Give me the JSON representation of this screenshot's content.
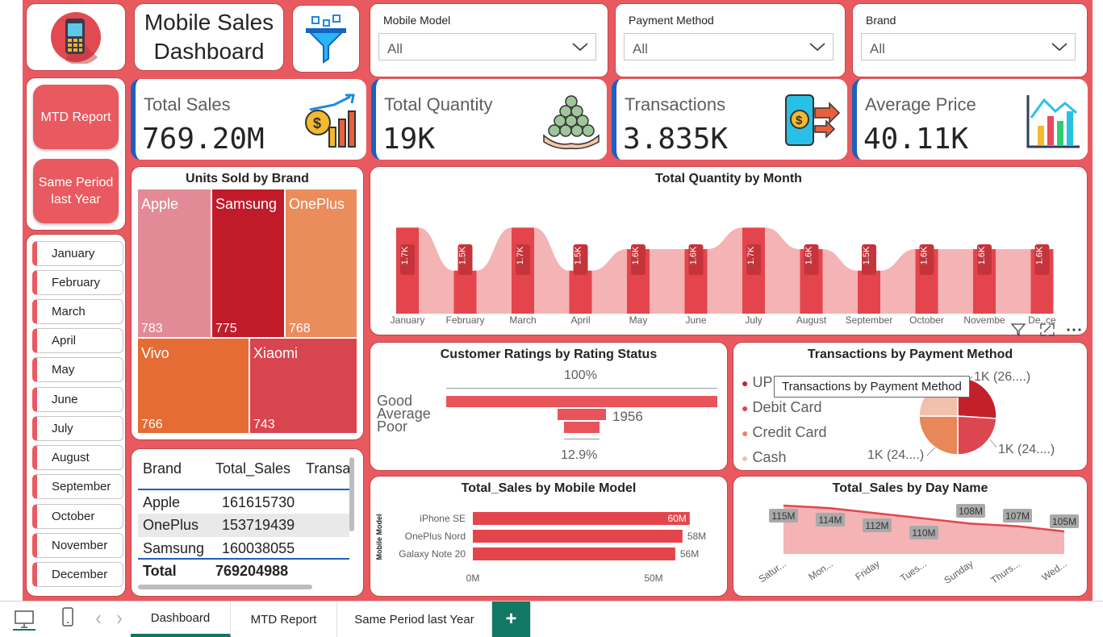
{
  "title": "Mobile Sales Dashboard",
  "slicers": [
    {
      "label": "Mobile Model",
      "value": "All"
    },
    {
      "label": "Payment Method",
      "value": "All"
    },
    {
      "label": "Brand",
      "value": "All"
    }
  ],
  "nav": {
    "mtd": "MTD Report",
    "same_period": "Same Period last Year"
  },
  "months": [
    "January",
    "February",
    "March",
    "April",
    "May",
    "June",
    "July",
    "August",
    "September",
    "October",
    "November",
    "December"
  ],
  "kpis": [
    {
      "title": "Total Sales",
      "value": "769.20M"
    },
    {
      "title": "Total Quantity",
      "value": "19K"
    },
    {
      "title": "Transactions",
      "value": "3.835K"
    },
    {
      "title": "Average Price",
      "value": "40.11K"
    }
  ],
  "treemap": {
    "title": "Units Sold by Brand",
    "items": [
      {
        "brand": "Apple",
        "units": "783"
      },
      {
        "brand": "Samsung",
        "units": "775"
      },
      {
        "brand": "OnePlus",
        "units": "768"
      },
      {
        "brand": "Vivo",
        "units": "766"
      },
      {
        "brand": "Xiaomi",
        "units": "743"
      }
    ]
  },
  "table": {
    "headers": [
      "Brand",
      "Total_Sales",
      "Transa"
    ],
    "rows": [
      [
        "Apple",
        "161615730"
      ],
      [
        "OnePlus",
        "153719439"
      ],
      [
        "Samsung",
        "160038055"
      ]
    ],
    "total": [
      "Total",
      "769204988"
    ]
  },
  "monthly": {
    "title": "Total Quantity by Month",
    "labels": [
      "1.7K",
      "1.5K",
      "1.7K",
      "1.5K",
      "1.6K",
      "1.6K",
      "1.7K",
      "1.6K",
      "1.5K",
      "1.6K",
      "1.6K",
      "1.6K"
    ],
    "values": [
      1.7,
      1.5,
      1.7,
      1.5,
      1.6,
      1.6,
      1.7,
      1.6,
      1.5,
      1.6,
      1.6,
      1.6
    ],
    "axis": [
      "January",
      "February",
      "March",
      "April",
      "May",
      "June",
      "July",
      "August",
      "September",
      "October",
      "Novembe",
      "De..ce"
    ]
  },
  "ratings": {
    "title": "Customer Ratings by Rating Status",
    "stages": [
      "Good",
      "Average",
      "Poor"
    ],
    "top": "100%",
    "middle": "1956",
    "bottom": "12.9%"
  },
  "payment": {
    "title": "Transactions by Payment Method",
    "legend": [
      "UPI",
      "Debit Card",
      "Credit Card",
      "Cash"
    ],
    "colors": [
      "#c4202b",
      "#dc4650",
      "#e8875a",
      "#f2c1ae"
    ],
    "labels": [
      "1K (26....)",
      "1K (24....)",
      "1K (24....)"
    ],
    "tooltip": "Transactions by Payment Method",
    "shares": [
      26,
      24,
      25,
      25
    ]
  },
  "models": {
    "title": "Total_Sales by Mobile Model",
    "axis_title": "Mobile Model",
    "items": [
      {
        "name": "iPhone SE",
        "value": 60,
        "label": "60M"
      },
      {
        "name": "OnePlus Nord",
        "value": 58,
        "label": "58M"
      },
      {
        "name": "Galaxy Note 20",
        "value": 56,
        "label": "56M"
      }
    ],
    "ticks": [
      "0M",
      "50M"
    ]
  },
  "days": {
    "title": "Total_Sales by Day Name",
    "labels": [
      "115M",
      "114M",
      "112M",
      "110M",
      "108M",
      "107M",
      "105M"
    ],
    "values": [
      115,
      114,
      112,
      110,
      108,
      107,
      105
    ],
    "axis": [
      "Satur...",
      "Mon...",
      "Friday",
      "Tues...",
      "Sunday",
      "Thurs...",
      "Wed..."
    ]
  },
  "tabs": [
    "Dashboard",
    "MTD Report",
    "Same Period last Year"
  ],
  "add_tab": "+"
}
